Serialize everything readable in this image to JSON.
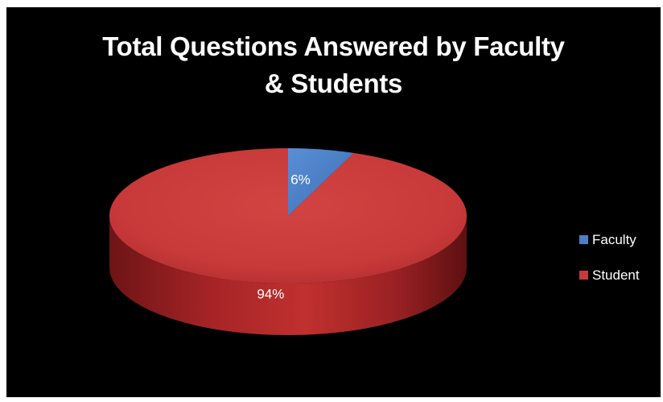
{
  "chart_data": {
    "type": "pie",
    "style": "3d",
    "title": "Total Questions Answered by Faculty & Students",
    "title_lines": [
      "Total Questions Answered by Faculty",
      "& Students"
    ],
    "legend_position": "right",
    "slices": [
      {
        "label": "Faculty",
        "value": 6,
        "display": "6%",
        "color": "#4a80c8"
      },
      {
        "label": "Student",
        "value": 94,
        "display": "94%",
        "color": "#c8393a"
      }
    ]
  }
}
